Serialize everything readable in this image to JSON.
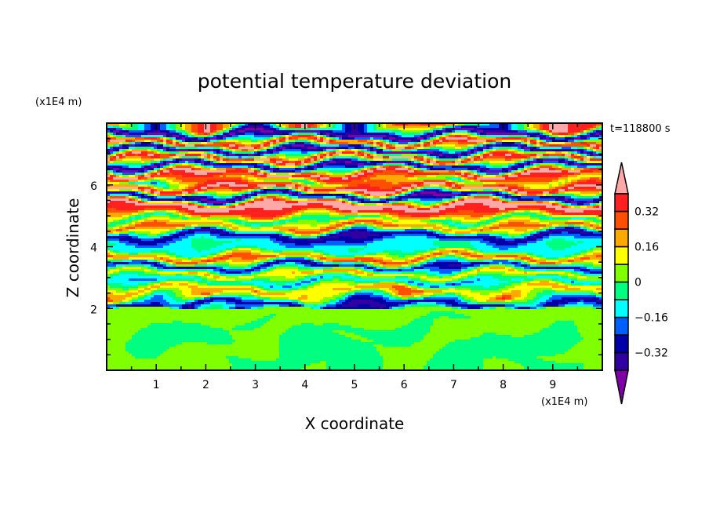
{
  "chart_data": {
    "type": "heatmap",
    "subtype": "filled-contour",
    "title": "potential temperature deviation",
    "xlabel": "X coordinate",
    "ylabel": "Z coordinate",
    "x_unit": "(x1E4 m)",
    "y_unit": "(x1E4 m)",
    "time_label": "t=118800 s",
    "xlim": [
      0,
      10
    ],
    "ylim": [
      0,
      8
    ],
    "x_ticks": [
      1,
      2,
      3,
      4,
      5,
      6,
      7,
      8,
      9
    ],
    "y_ticks": [
      2,
      4,
      6
    ],
    "colorbar": {
      "levels": [
        -0.4,
        -0.32,
        -0.24,
        -0.16,
        -0.08,
        0,
        0.08,
        0.16,
        0.24,
        0.32,
        0.4
      ],
      "colors": [
        "#3000a0",
        "#0000a8",
        "#0060ff",
        "#00ffff",
        "#00ff80",
        "#80ff00",
        "#ffff00",
        "#ffa800",
        "#ff5000",
        "#ff2020"
      ],
      "under_color": "#8000a8",
      "over_color": "#ffa8a8",
      "tick_labels": [
        "0.32",
        "0.16",
        "0",
        "-0.16",
        "-0.32"
      ],
      "tick_values": [
        0.32,
        0.16,
        0,
        -0.16,
        -0.32
      ]
    },
    "grid_x": [
      0,
      1,
      2,
      3,
      4,
      5,
      6,
      7,
      8,
      9,
      10
    ],
    "grid_z_step": 0.25,
    "values_by_row_bottom_up": [
      [
        0.03,
        0.03,
        0.02,
        -0.02,
        0.02,
        -0.03,
        0.02,
        -0.03,
        0.02,
        -0.03,
        0.02
      ],
      [
        0.03,
        0.02,
        0.02,
        -0.03,
        -0.03,
        -0.03,
        0.02,
        -0.03,
        -0.02,
        -0.03,
        0.02
      ],
      [
        0.03,
        -0.02,
        0.02,
        0.03,
        -0.03,
        -0.03,
        0.03,
        -0.02,
        -0.03,
        0.02,
        0.03
      ],
      [
        0.02,
        -0.03,
        -0.02,
        0.03,
        -0.03,
        -0.02,
        0.03,
        0.03,
        -0.03,
        -0.03,
        0.02
      ],
      [
        0.02,
        -0.03,
        -0.03,
        0.02,
        -0.02,
        0.02,
        -0.03,
        0.03,
        -0.02,
        -0.03,
        0.03
      ],
      [
        0.03,
        0.02,
        -0.03,
        0.03,
        0.02,
        -0.03,
        -0.03,
        0.02,
        0.02,
        -0.02,
        0.03
      ],
      [
        0.03,
        0.03,
        0.02,
        -0.02,
        0.03,
        0.02,
        0.02,
        -0.02,
        0.03,
        0.02,
        0.03
      ],
      [
        0.04,
        0.03,
        0.03,
        0.03,
        0.02,
        0.03,
        0.03,
        0.02,
        0.03,
        0.03,
        0.04
      ],
      [
        -0.36,
        -0.33,
        -0.35,
        -0.3,
        -0.34,
        -0.36,
        -0.33,
        -0.3,
        -0.35,
        -0.33,
        -0.36
      ],
      [
        0.3,
        -0.2,
        0.3,
        -0.1,
        0.2,
        -0.3,
        0.3,
        -0.2,
        0.35,
        -0.2,
        0.1
      ],
      [
        0.2,
        0.22,
        0.15,
        0.25,
        0.12,
        0.2,
        0.3,
        0.18,
        0.1,
        0.25,
        0.2
      ],
      [
        -0.15,
        -0.2,
        -0.1,
        -0.15,
        -0.22,
        -0.12,
        -0.18,
        -0.25,
        -0.1,
        -0.15,
        -0.2
      ],
      [
        0.15,
        0.1,
        0.2,
        0.12,
        0.18,
        0.25,
        0.1,
        0.15,
        0.2,
        0.12,
        0.15
      ],
      [
        -0.3,
        -0.35,
        -0.28,
        -0.32,
        -0.38,
        -0.3,
        -0.25,
        -0.35,
        -0.3,
        -0.33,
        -0.3
      ],
      [
        0.3,
        0.25,
        0.35,
        0.3,
        0.22,
        0.38,
        0.3,
        0.28,
        0.35,
        0.3,
        0.25
      ],
      [
        -0.1,
        -0.05,
        -0.12,
        -0.15,
        -0.08,
        -0.1,
        -0.14,
        -0.06,
        -0.1,
        -0.12,
        -0.1
      ],
      [
        -0.05,
        -0.2,
        -0.02,
        -0.1,
        -0.25,
        -0.05,
        -0.15,
        -0.02,
        -0.2,
        -0.05,
        -0.1
      ],
      [
        -0.35,
        -0.3,
        -0.38,
        -0.32,
        -0.35,
        -0.4,
        -0.3,
        -0.35,
        -0.33,
        -0.38,
        -0.35
      ],
      [
        0.28,
        0.32,
        0.25,
        0.2,
        0.3,
        0.35,
        0.28,
        0.22,
        0.3,
        0.26,
        0.3
      ],
      [
        -0.08,
        -0.12,
        0.05,
        -0.15,
        -0.05,
        -0.1,
        0.08,
        -0.12,
        -0.06,
        -0.1,
        -0.08
      ],
      [
        0.35,
        0.3,
        0.38,
        0.32,
        0.36,
        0.42,
        0.3,
        0.35,
        0.4,
        0.33,
        0.36
      ],
      [
        0.45,
        0.42,
        0.48,
        0.45,
        0.44,
        0.46,
        0.48,
        0.45,
        0.43,
        0.47,
        0.45
      ],
      [
        -0.45,
        -0.42,
        -0.48,
        -0.44,
        -0.46,
        -0.45,
        -0.43,
        -0.47,
        -0.45,
        -0.44,
        -0.46
      ],
      [
        0.45,
        0.47,
        0.43,
        0.46,
        0.45,
        0.44,
        0.48,
        0.45,
        0.46,
        0.44,
        0.45
      ],
      [
        0.1,
        -0.2,
        0.3,
        0.1,
        -0.1,
        0.25,
        0.15,
        -0.15,
        0.2,
        0.05,
        0.1
      ],
      [
        0.45,
        0.46,
        0.44,
        0.47,
        0.45,
        0.43,
        0.46,
        0.45,
        0.47,
        0.44,
        0.45
      ],
      [
        -0.45,
        -0.47,
        -0.44,
        -0.46,
        -0.45,
        -0.43,
        -0.46,
        -0.45,
        -0.44,
        -0.47,
        -0.45
      ],
      [
        0.45,
        0.44,
        0.46,
        0.45,
        0.47,
        0.44,
        0.45,
        0.46,
        0.43,
        0.45,
        0.46
      ],
      [
        -0.45,
        -0.46,
        -0.44,
        -0.45,
        -0.43,
        -0.47,
        -0.45,
        -0.44,
        -0.46,
        -0.45,
        -0.44
      ],
      [
        0.45,
        0.47,
        0.44,
        0.45,
        0.46,
        0.45,
        0.43,
        0.46,
        0.45,
        0.44,
        0.47
      ],
      [
        -0.45,
        -0.44,
        -0.46,
        -0.45,
        -0.47,
        -0.44,
        -0.45,
        -0.46,
        -0.44,
        -0.45,
        -0.46
      ],
      [
        0.3,
        -0.3,
        0.45,
        -0.2,
        0.45,
        -0.4,
        0.45,
        0.2,
        -0.3,
        0.45,
        0.3
      ]
    ]
  }
}
